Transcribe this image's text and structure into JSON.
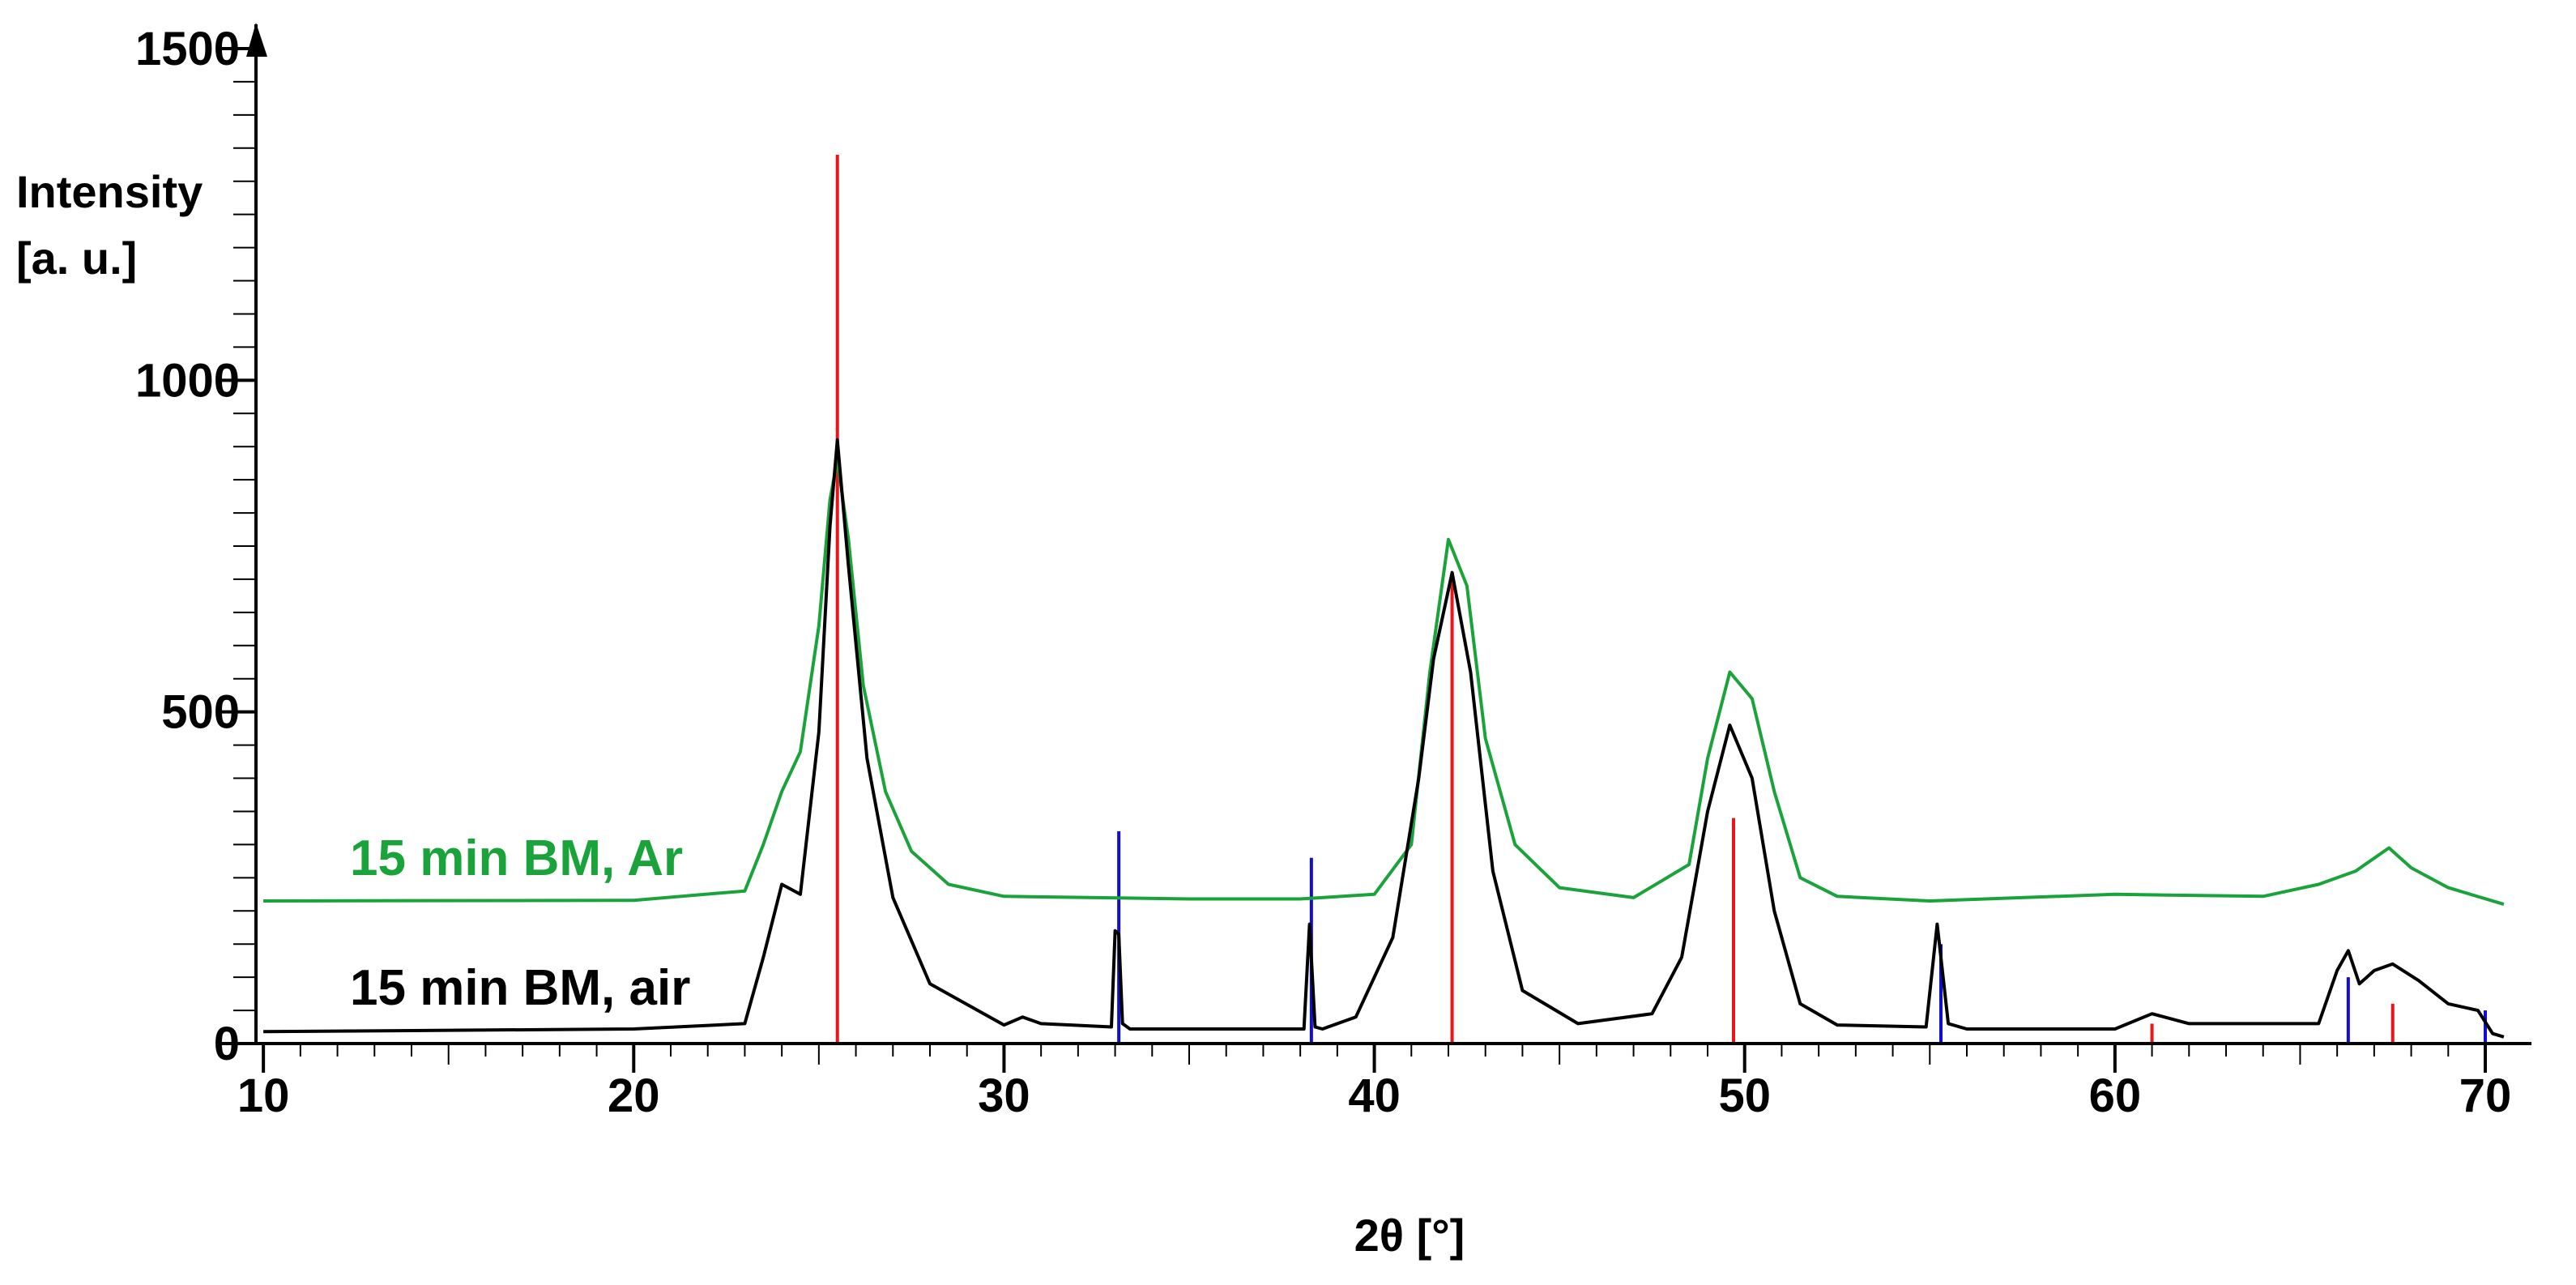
{
  "chart_data": {
    "type": "line",
    "xlabel": "2θ [°]",
    "ylabel_lines": [
      "Intensity",
      "[a. u.]"
    ],
    "xlim": [
      9.8,
      70.7
    ],
    "ylim": [
      0,
      1500
    ],
    "x_ticks": [
      10,
      20,
      30,
      40,
      50,
      60,
      70
    ],
    "y_ticks": [
      0,
      500,
      1000,
      1500
    ],
    "x_tick_labels": [
      "10",
      "20",
      "30",
      "40",
      "50",
      "60",
      "70"
    ],
    "y_tick_labels": [
      "0",
      "500",
      "1000",
      "1500"
    ],
    "grid": false,
    "legend": "inline labels",
    "series": [
      {
        "name": "15 min BM, Ar",
        "color": "#1aa33a",
        "x": [
          10,
          20,
          23.0,
          23.5,
          24.0,
          24.5,
          25.0,
          25.3,
          25.5,
          25.8,
          26.2,
          26.8,
          27.5,
          28.5,
          30,
          35,
          38,
          40,
          41.0,
          41.5,
          42.0,
          42.5,
          43.0,
          43.8,
          45.0,
          47,
          48.5,
          49.0,
          49.6,
          50.2,
          50.8,
          51.5,
          52.5,
          55,
          60,
          64,
          65.5,
          66.5,
          67.4,
          68.0,
          69,
          70.5
        ],
        "y": [
          215,
          216,
          230,
          300,
          380,
          440,
          630,
          820,
          880,
          760,
          540,
          380,
          290,
          240,
          222,
          218,
          218,
          225,
          300,
          560,
          760,
          690,
          460,
          300,
          235,
          220,
          270,
          430,
          560,
          520,
          380,
          250,
          222,
          215,
          225,
          222,
          240,
          260,
          295,
          265,
          235,
          210
        ]
      },
      {
        "name": "15 min BM, air",
        "color": "#000000",
        "x": [
          10,
          20,
          23.0,
          23.5,
          24.0,
          24.5,
          25.0,
          25.3,
          25.5,
          25.8,
          26.3,
          27,
          28,
          30,
          30.5,
          31,
          32.9,
          33.0,
          33.1,
          33.2,
          33.4,
          35,
          38.1,
          38.25,
          38.4,
          38.6,
          39.5,
          40.5,
          41.2,
          41.6,
          42.1,
          42.6,
          43.2,
          44,
          45.5,
          47.5,
          48.3,
          49.0,
          49.6,
          50.2,
          50.8,
          51.5,
          52.5,
          54.9,
          55.2,
          55.5,
          56,
          60,
          61,
          62,
          65.5,
          66.0,
          66.3,
          66.6,
          67.0,
          67.5,
          68.2,
          69,
          69.8,
          70.2,
          70.5
        ],
        "y": [
          18,
          22,
          30,
          130,
          240,
          225,
          470,
          780,
          910,
          720,
          430,
          220,
          90,
          28,
          40,
          30,
          25,
          170,
          165,
          30,
          22,
          22,
          22,
          180,
          25,
          22,
          40,
          160,
          400,
          580,
          710,
          560,
          260,
          80,
          30,
          45,
          130,
          350,
          480,
          400,
          200,
          60,
          28,
          25,
          180,
          30,
          22,
          22,
          45,
          30,
          30,
          110,
          140,
          90,
          110,
          120,
          95,
          60,
          50,
          15,
          10
        ]
      }
    ],
    "reference_lines": [
      {
        "color": "#e8151b",
        "x": [
          25.5,
          42.1,
          49.7,
          61.0,
          67.5
        ],
        "y": [
          1340,
          700,
          340,
          30,
          60
        ]
      },
      {
        "color": "#1010cc",
        "x": [
          33.1,
          38.3,
          55.3,
          66.3,
          70.0
        ],
        "y": [
          320,
          280,
          150,
          100,
          50
        ]
      }
    ]
  }
}
